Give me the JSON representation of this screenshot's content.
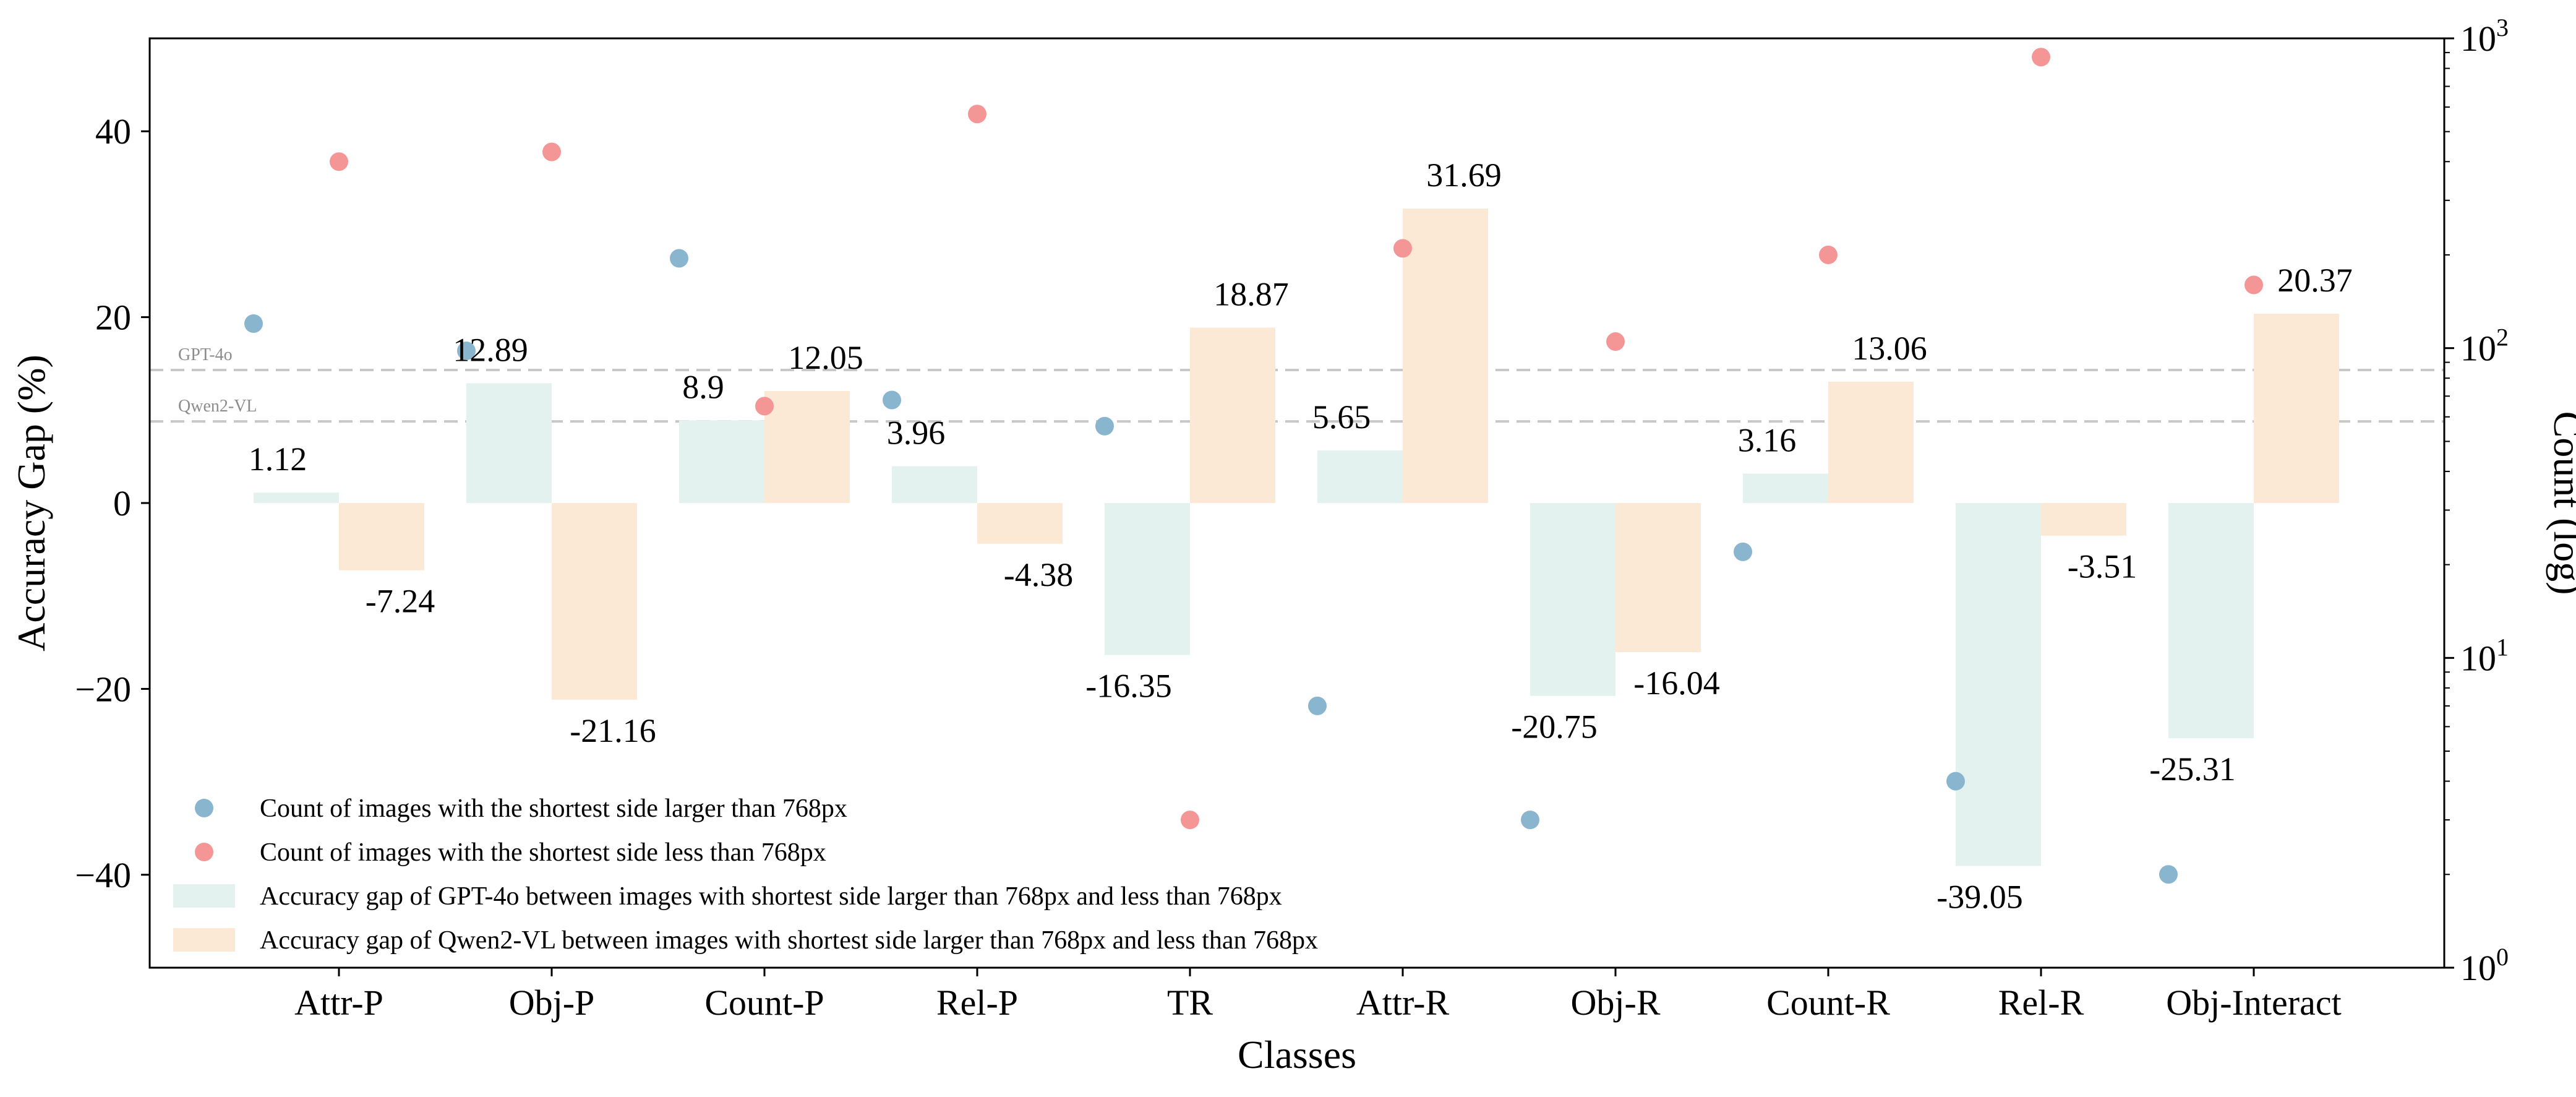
{
  "chart_data": {
    "type": "bar",
    "categories": [
      "Attr-P",
      "Obj-P",
      "Count-P",
      "Rel-P",
      "TR",
      "Attr-R",
      "Obj-R",
      "Count-R",
      "Rel-R",
      "Obj-Interact"
    ],
    "xlabel": "Classes",
    "ylabel": "Accuracy Gap (%)",
    "y2label": "Count (log)",
    "ylim": [
      -50,
      50
    ],
    "y2lim": [
      1,
      1000
    ],
    "y2scale": "log",
    "yticks": [
      "−40",
      "−20",
      "0",
      "20",
      "40"
    ],
    "grid": false,
    "legend_position": "lower-left",
    "series": [
      {
        "name": "Accuracy gap of GPT-4o between images with shortest side larger than 768px and less than 768px",
        "kind": "bar",
        "axis": "left",
        "color": "#e3f2ef",
        "values": [
          1.12,
          12.89,
          8.9,
          3.96,
          -16.35,
          5.65,
          -20.75,
          3.16,
          -39.05,
          -25.31
        ],
        "labels": [
          "1.12",
          "12.89",
          "8.9",
          "3.96",
          "-16.35",
          "5.65",
          "-20.75",
          "3.16",
          "-39.05",
          "-25.31"
        ]
      },
      {
        "name": "Accuracy gap of Qwen2-VL between images with shortest side larger than 768px and less than 768px",
        "kind": "bar",
        "axis": "left",
        "color": "#fce9d5",
        "values": [
          -7.24,
          -21.16,
          12.05,
          -4.38,
          18.87,
          31.69,
          -16.04,
          13.06,
          -3.51,
          20.37
        ],
        "labels": [
          "-7.24",
          "-21.16",
          "12.05",
          "-4.38",
          "18.87",
          "31.69",
          "-16.04",
          "13.06",
          "-3.51",
          "20.37"
        ]
      },
      {
        "name": "Count of images with the shortest side larger than 768px",
        "kind": "scatter",
        "axis": "right",
        "color": "#89b5cf",
        "values": [
          120,
          98,
          195,
          68,
          56,
          7,
          3,
          22,
          4,
          2
        ]
      },
      {
        "name": "Count of images with the shortest side less than 768px",
        "kind": "scatter",
        "axis": "right",
        "color": "#f59696",
        "values": [
          400,
          430,
          65,
          570,
          3,
          210,
          105,
          200,
          870,
          160
        ]
      }
    ],
    "reference_lines": [
      {
        "label": "GPT-4o",
        "axis": "right",
        "value": 85
      },
      {
        "label": "Qwen2-VL",
        "axis": "right",
        "value": 58
      }
    ]
  }
}
